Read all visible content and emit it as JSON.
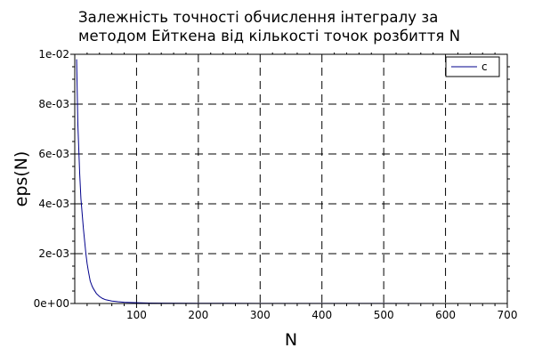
{
  "chart_data": {
    "type": "line",
    "title_lines": [
      "Залежність точності обчислення інтегралу за",
      "методом Ейткена від кількості точок розбиття N"
    ],
    "xlabel": "N",
    "ylabel": "eps(N)",
    "xlim": [
      0,
      700
    ],
    "ylim": [
      0,
      0.01
    ],
    "x_ticks": [
      100,
      200,
      300,
      400,
      500,
      600,
      700
    ],
    "x_tick_labels": [
      "100",
      "200",
      "300",
      "400",
      "500",
      "600",
      "700"
    ],
    "y_ticks": [
      0,
      0.002,
      0.004,
      0.006,
      0.008,
      0.01
    ],
    "y_tick_labels": [
      "0e+00",
      "2e-03",
      "4e-03",
      "6e-03",
      "8e-03",
      "1e-02"
    ],
    "grid": true,
    "legend_position": "top-right",
    "series": [
      {
        "name": "c",
        "color": "#00008b",
        "x": [
          3,
          5,
          8,
          10,
          12,
          14,
          16,
          18,
          20,
          22,
          25,
          28,
          30,
          35,
          40,
          45,
          50,
          60,
          70,
          80,
          90,
          100,
          120,
          150,
          200,
          300,
          400,
          500,
          600,
          662
        ],
        "y": [
          0.0098,
          0.0072,
          0.0052,
          0.0042,
          0.0036,
          0.003,
          0.0025,
          0.002,
          0.0016,
          0.0013,
          0.0009,
          0.0007,
          0.0006,
          0.0004,
          0.00028,
          0.0002,
          0.00015,
          0.0001,
          7e-05,
          5e-05,
          4e-05,
          3e-05,
          2e-05,
          1.5e-05,
          1e-05,
          6e-06,
          4e-06,
          3e-06,
          2e-06,
          2e-06
        ]
      }
    ]
  }
}
